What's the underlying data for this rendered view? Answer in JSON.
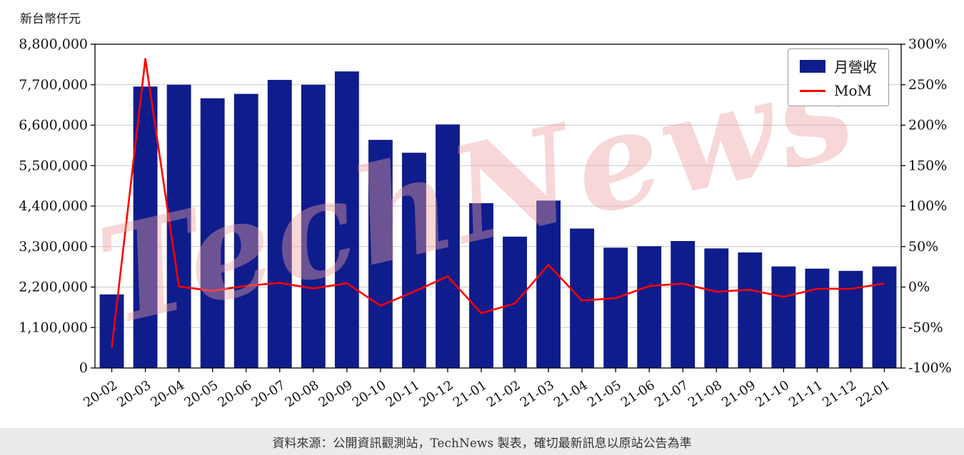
{
  "unit_label": "新台幣仟元",
  "watermark": "TechNews",
  "footer": "資料來源：公開資訊觀測站，TechNews 製表，確切最新訊息以原站公告為準",
  "legend": {
    "bar_label": "月營收",
    "line_label": "MoM"
  },
  "colors": {
    "bar": "#0f1c8c",
    "line": "#ff0000",
    "grid": "#c9c9c9",
    "axis": "#000000",
    "watermark": "rgba(236,160,160,0.42)",
    "footer_bg": "#ebebeb"
  },
  "chart_data": {
    "type": "bar",
    "title": "",
    "xlabel": "",
    "ylabel_left": "新台幣仟元",
    "ylabel_right": "%",
    "grid": true,
    "legend_position": "top-right",
    "categories": [
      "20-02",
      "20-03",
      "20-04",
      "20-05",
      "20-06",
      "20-07",
      "20-08",
      "20-09",
      "20-10",
      "20-11",
      "20-12",
      "21-01",
      "21-02",
      "21-03",
      "21-04",
      "21-05",
      "21-06",
      "21-07",
      "21-08",
      "21-09",
      "21-10",
      "21-11",
      "21-12",
      "22-01"
    ],
    "series": [
      {
        "name": "月營收",
        "type": "bar",
        "axis": "left",
        "values": [
          2000000,
          7650000,
          7700000,
          7330000,
          7450000,
          7830000,
          7700000,
          8060000,
          6200000,
          5850000,
          6620000,
          4480000,
          3570000,
          4550000,
          3790000,
          3270000,
          3310000,
          3450000,
          3250000,
          3140000,
          2760000,
          2700000,
          2640000,
          2760000
        ]
      },
      {
        "name": "MoM",
        "type": "line",
        "axis": "right",
        "values": [
          -75,
          281.9,
          0.7,
          -4.8,
          1.6,
          5.1,
          -1.7,
          4.7,
          -23.1,
          -5.6,
          13.2,
          -32.3,
          -20.3,
          27.5,
          -16.7,
          -13.7,
          1.2,
          4.2,
          -5.8,
          -3.4,
          -12.1,
          -2.2,
          -2.2,
          4.5
        ]
      }
    ],
    "left_axis": {
      "min": 0,
      "max": 8800000,
      "tick_step": 1100000,
      "tick_labels": [
        "0",
        "1,100,000",
        "2,200,000",
        "3,300,000",
        "4,400,000",
        "5,500,000",
        "6,600,000",
        "7,700,000",
        "8,800,000"
      ]
    },
    "right_axis": {
      "min": -100,
      "max": 300,
      "tick_step": 50,
      "suffix": "%",
      "tick_labels": [
        "-100%",
        "-50%",
        "0%",
        "50%",
        "100%",
        "150%",
        "200%",
        "250%",
        "300%"
      ]
    }
  }
}
